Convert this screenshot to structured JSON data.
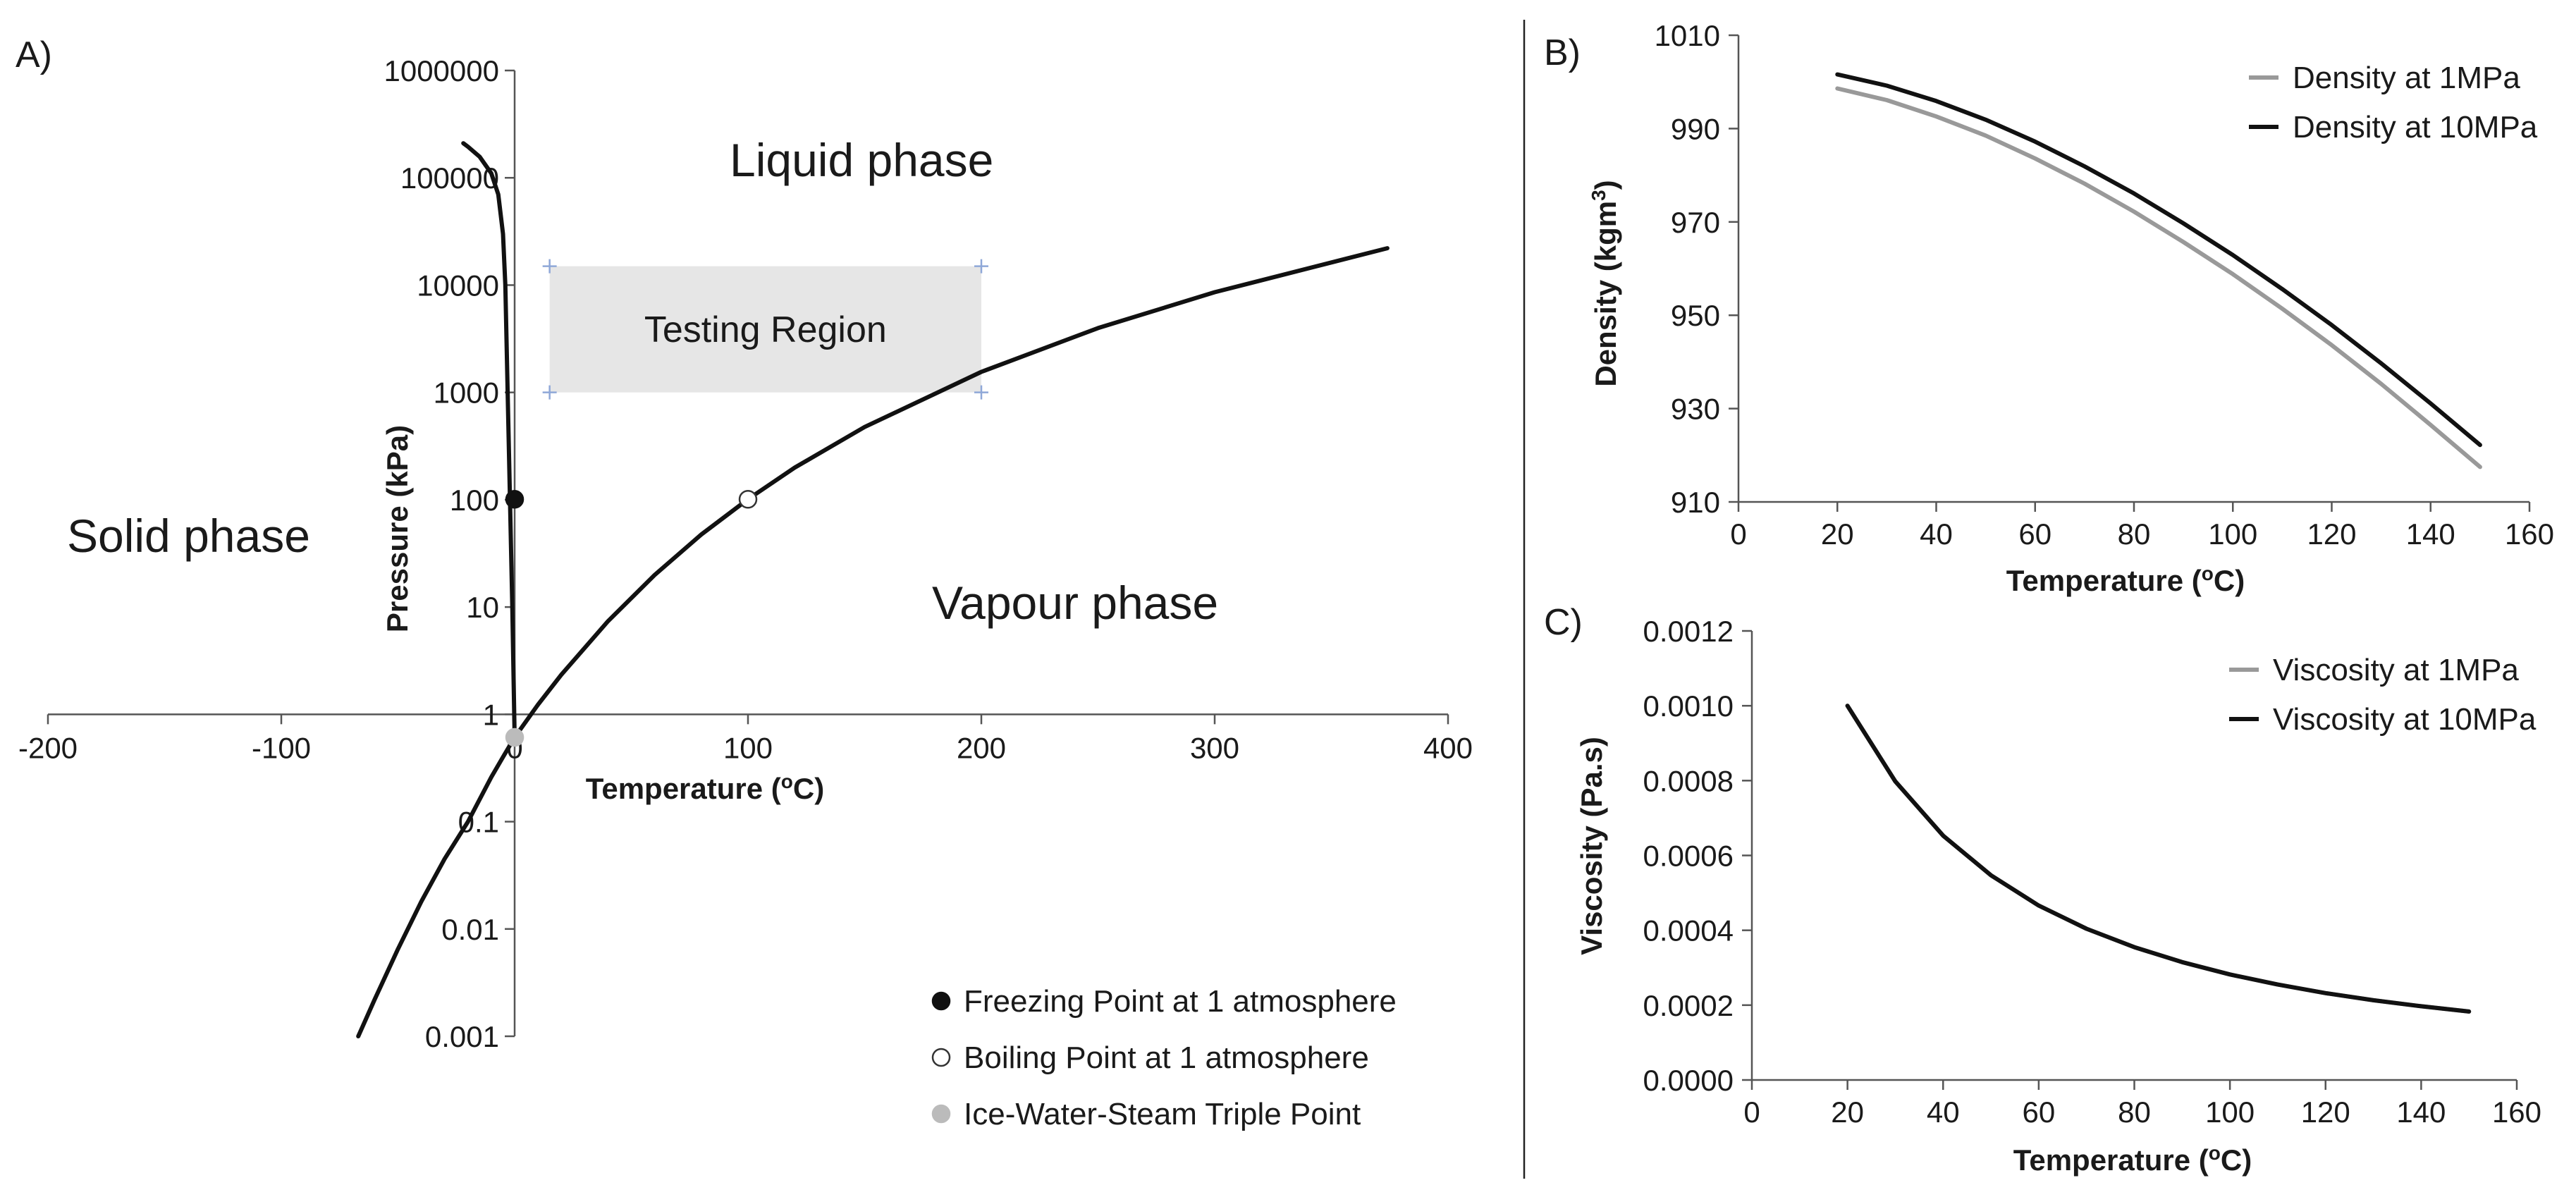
{
  "colors": {
    "black_series": "#111111",
    "grey_series": "#999999",
    "freezing_marker": "#111111",
    "boiling_marker": "#ffffff",
    "triple_marker": "#bbbbbb",
    "testing_region_fill": "#e6e6e6",
    "testing_region_corner": "#8fa8d8"
  },
  "chart_data": [
    {
      "panel": "A)",
      "type": "line",
      "xlabel": "Temperature (oC)",
      "ylabel": "Pressure (kPa)",
      "xlim": [
        -200,
        400
      ],
      "ylim": [
        0.001,
        1000000
      ],
      "yscale": "log",
      "x_ticks": [
        "-200",
        "-100",
        "0",
        "100",
        "200",
        "300",
        "400"
      ],
      "y_ticks": [
        "0.001",
        "0.01",
        "0.1",
        "1",
        "10",
        "100",
        "1000",
        "10000",
        "100000",
        "1000000"
      ],
      "phase_labels": [
        "Liquid phase",
        "Solid phase",
        "Vapour phase"
      ],
      "testing_region": {
        "label": "Testing Region",
        "x": [
          15,
          200
        ],
        "y": [
          1000,
          15000
        ]
      },
      "series": [
        {
          "x": [
            -67,
            -60,
            -50,
            -40,
            -30,
            -20,
            -10,
            -5,
            0.01,
            10,
            20,
            40,
            60,
            80,
            100,
            120,
            150,
            200,
            250,
            300,
            374
          ],
          "y": [
            0.001,
            0.0022,
            0.0065,
            0.018,
            0.045,
            0.1,
            0.26,
            0.4,
            0.61,
            1.23,
            2.34,
            7.38,
            19.9,
            47.4,
            101,
            199,
            476,
            1555,
            3976,
            8588,
            22064
          ]
        },
        {
          "x": [
            -22,
            -20,
            -15,
            -10,
            -7,
            -5,
            -4,
            -3,
            -2,
            -1,
            0.01
          ],
          "y": [
            210000,
            195000,
            157000,
            110000,
            70000,
            30000,
            10000,
            1000,
            100,
            10,
            0.61
          ]
        }
      ],
      "points": [
        {
          "label": "Freezing Point at 1 atmosphere",
          "x": 0,
          "y": 101
        },
        {
          "label": "Boiling Point at 1 atmosphere",
          "x": 100,
          "y": 101
        },
        {
          "label": "Ice-Water-Steam Triple Point",
          "x": 0.01,
          "y": 0.61
        }
      ]
    },
    {
      "panel": "B)",
      "type": "line",
      "xlabel": "Temperature (oC)",
      "ylabel": "Density (kgm3)",
      "xlim": [
        0,
        160
      ],
      "ylim": [
        910,
        1010
      ],
      "x_ticks": [
        "0",
        "20",
        "40",
        "60",
        "80",
        "100",
        "120",
        "140",
        "160"
      ],
      "y_ticks": [
        "910",
        "930",
        "950",
        "970",
        "990",
        "1010"
      ],
      "legend_position": "top-right",
      "series": [
        {
          "name": "Density at 1MPa",
          "x": [
            20,
            30,
            40,
            50,
            60,
            70,
            80,
            90,
            100,
            110,
            120,
            130,
            140,
            150
          ],
          "y": [
            998.6,
            996.1,
            992.6,
            988.5,
            983.6,
            978.2,
            972.2,
            965.7,
            958.8,
            951.4,
            943.6,
            935.3,
            926.5,
            917.5
          ]
        },
        {
          "name": "Density at 10MPa",
          "x": [
            20,
            30,
            40,
            50,
            60,
            70,
            80,
            90,
            100,
            110,
            120,
            130,
            140,
            150
          ],
          "y": [
            1001.6,
            999.2,
            995.9,
            991.9,
            987.2,
            981.9,
            976.1,
            969.7,
            962.9,
            955.6,
            947.9,
            939.7,
            931.1,
            922.2
          ]
        }
      ]
    },
    {
      "panel": "C)",
      "type": "line",
      "xlabel": "Temperature (oC)",
      "ylabel": "Viscosity (Pa.s)",
      "xlim": [
        0,
        160
      ],
      "ylim": [
        0,
        0.0012
      ],
      "x_ticks": [
        "0",
        "20",
        "40",
        "60",
        "80",
        "100",
        "120",
        "140",
        "160"
      ],
      "y_ticks": [
        "0.0000",
        "0.0002",
        "0.0004",
        "0.0006",
        "0.0008",
        "0.0010",
        "0.0012"
      ],
      "legend_position": "top-right",
      "series": [
        {
          "name": "Viscosity at 1MPa",
          "x": [
            20,
            30,
            40,
            50,
            60,
            70,
            80,
            90,
            100,
            110,
            120,
            130,
            140,
            150
          ],
          "y": [
            0.001,
            0.000798,
            0.000653,
            0.000547,
            0.000466,
            0.000404,
            0.000355,
            0.000315,
            0.000282,
            0.000255,
            0.000232,
            0.000213,
            0.000197,
            0.000183
          ]
        },
        {
          "name": "Viscosity at 10MPa",
          "x": [
            20,
            30,
            40,
            50,
            60,
            70,
            80,
            90,
            100,
            110,
            120,
            130,
            140,
            150
          ],
          "y": [
            0.001,
            0.000798,
            0.000653,
            0.000547,
            0.000466,
            0.000404,
            0.000355,
            0.000315,
            0.000282,
            0.000255,
            0.000232,
            0.000213,
            0.000197,
            0.000183
          ]
        }
      ]
    }
  ]
}
